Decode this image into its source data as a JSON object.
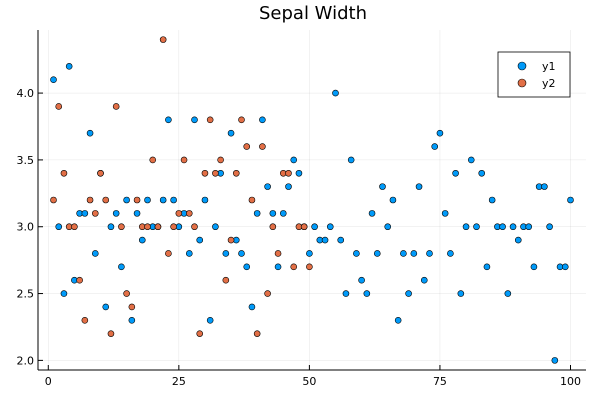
{
  "chart_data": {
    "type": "scatter",
    "title": "Sepal Width",
    "xlabel": "",
    "ylabel": "",
    "xlim": [
      -1.97,
      102.97
    ],
    "ylim": [
      1.928,
      4.472
    ],
    "x_ticks": [
      0,
      25,
      50,
      75,
      100
    ],
    "x_tick_labels": [
      "0",
      "25",
      "50",
      "75",
      "100"
    ],
    "y_ticks": [
      2.0,
      2.5,
      3.0,
      3.5,
      4.0
    ],
    "y_tick_labels": [
      "2.0",
      "2.5",
      "3.0",
      "3.5",
      "4.0"
    ],
    "grid": true,
    "legend_position": "top-right",
    "series": [
      {
        "name": "y1",
        "color": "#009AF9",
        "x": [
          1,
          2,
          3,
          4,
          5,
          6,
          7,
          8,
          9,
          10,
          11,
          12,
          13,
          14,
          15,
          16,
          17,
          18,
          19,
          20,
          21,
          22,
          23,
          24,
          25,
          26,
          27,
          28,
          29,
          30,
          31,
          32,
          33,
          34,
          35,
          36,
          37,
          38,
          39,
          40,
          41,
          42,
          43,
          44,
          45,
          46,
          47,
          48,
          49,
          50,
          51,
          52,
          53,
          54,
          55,
          56,
          57,
          58,
          59,
          60,
          61,
          62,
          63,
          64,
          65,
          66,
          67,
          68,
          69,
          70,
          71,
          72,
          73,
          74,
          75,
          76,
          77,
          78,
          79,
          80,
          81,
          82,
          83,
          84,
          85,
          86,
          87,
          88,
          89,
          90,
          91,
          92,
          93,
          94,
          95,
          96,
          97,
          98,
          99,
          100
        ],
        "y": [
          4.1,
          3.0,
          2.5,
          4.2,
          2.6,
          3.1,
          3.1,
          3.7,
          2.8,
          3.4,
          2.4,
          3.0,
          3.1,
          2.7,
          3.2,
          2.3,
          3.1,
          2.9,
          3.2,
          3.0,
          3.0,
          3.2,
          3.8,
          3.2,
          3.0,
          3.1,
          2.8,
          3.8,
          2.9,
          3.2,
          2.3,
          3.0,
          3.4,
          2.8,
          3.7,
          2.9,
          2.8,
          2.7,
          2.4,
          3.1,
          3.8,
          3.3,
          3.1,
          2.7,
          3.1,
          3.3,
          3.5,
          3.4,
          3.0,
          2.8,
          3.0,
          2.9,
          2.9,
          3.0,
          4.0,
          2.9,
          2.5,
          3.5,
          2.8,
          2.6,
          2.5,
          3.1,
          2.8,
          3.3,
          3.0,
          3.2,
          2.3,
          2.8,
          2.5,
          2.8,
          3.3,
          2.6,
          2.8,
          3.6,
          3.7,
          3.1,
          2.8,
          3.4,
          2.5,
          3.0,
          3.5,
          3.0,
          3.4,
          2.7,
          3.2,
          3.0,
          3.0,
          2.5,
          3.0,
          2.9,
          3.0,
          3.0,
          2.7,
          3.3,
          3.3,
          3.0,
          2.0,
          2.7,
          2.7,
          3.2
        ]
      },
      {
        "name": "y2",
        "color": "#E26F46",
        "x": [
          1,
          2,
          3,
          4,
          5,
          6,
          7,
          8,
          9,
          10,
          11,
          12,
          13,
          14,
          15,
          16,
          17,
          18,
          19,
          20,
          21,
          22,
          23,
          24,
          25,
          26,
          27,
          28,
          29,
          30,
          31,
          32,
          33,
          34,
          35,
          36,
          37,
          38,
          39,
          40,
          41,
          42,
          43,
          44,
          45,
          46,
          47,
          48,
          49,
          50
        ],
        "y": [
          3.2,
          3.9,
          3.4,
          3.0,
          3.0,
          2.6,
          2.3,
          3.2,
          3.1,
          3.4,
          3.2,
          2.2,
          3.9,
          3.0,
          2.5,
          2.4,
          3.2,
          3.0,
          3.0,
          3.5,
          3.0,
          4.4,
          2.8,
          3.0,
          3.1,
          3.5,
          3.1,
          3.0,
          2.2,
          3.4,
          3.8,
          3.4,
          3.5,
          2.6,
          2.9,
          3.4,
          3.8,
          3.6,
          3.2,
          2.2,
          3.6,
          2.5,
          3.0,
          2.8,
          3.4,
          3.4,
          2.7,
          3.0,
          3.0,
          2.7
        ]
      }
    ]
  }
}
